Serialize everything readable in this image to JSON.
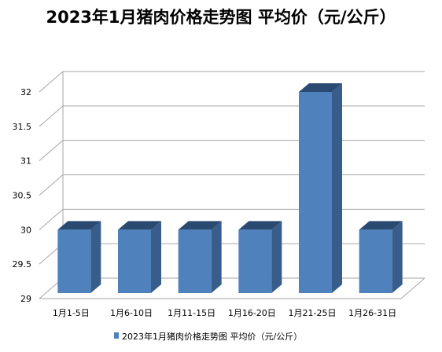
{
  "chart_data": {
    "type": "bar",
    "title": "2023年1月猪肉价格走势图 平均价（元/公斤）",
    "categories": [
      "1月1-5日",
      "1月6-10日",
      "1月11-15日",
      "1月16-20日",
      "1月21-25日",
      "1月26-31日"
    ],
    "series": [
      {
        "name": "2023年1月猪肉价格走势图 平均价（元/公斤）",
        "values": [
          30,
          30,
          30,
          30,
          32,
          30
        ]
      }
    ],
    "ylim": [
      29,
      32
    ],
    "yticks": [
      "29",
      "29.5",
      "30",
      "30.5",
      "31",
      "31.5",
      "32"
    ],
    "xlabel": "",
    "ylabel": "",
    "grid": true,
    "legend_position": "bottom",
    "colors": {
      "bar_front": "#4F81BD",
      "bar_side": "#385D8A",
      "bar_top": "#2A4A72",
      "grid": "#A6A6A6"
    }
  }
}
